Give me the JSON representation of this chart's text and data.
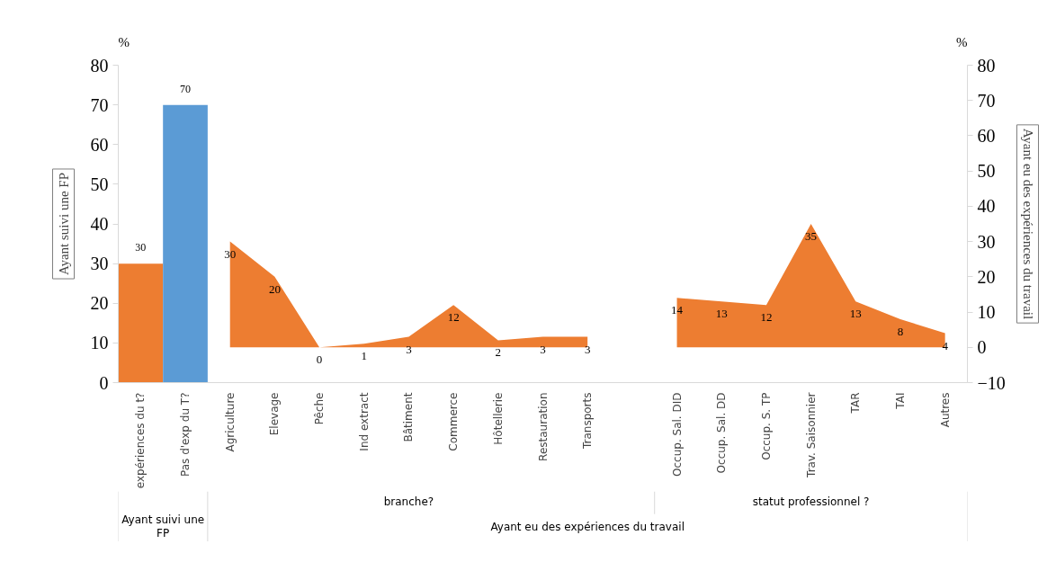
{
  "chart_data": {
    "type": "bar",
    "ylabel": "Ayant suivi une FP",
    "y2label": "Ayant eu des expériences du travail",
    "categories": [
      "expériences du t?",
      "Pas d'exp du T?",
      "Agriculture",
      "Elevage",
      "Pêche",
      "Ind extract",
      "Bâtiment",
      "Commerce",
      "Hôtellerie",
      "Restauration",
      "Transports",
      null,
      "Occup. Sal. DID",
      "Occup. Sal. DD",
      "Occup. S. TP",
      "Trav. Saisonnier",
      "TAR",
      "TAI",
      "Autres"
    ],
    "series": [
      {
        "colors": [
          "#ed7d31",
          "#5b9bd5",
          null,
          null,
          null,
          null,
          null,
          null,
          null,
          null,
          null,
          null,
          null,
          null,
          null,
          null,
          null,
          null,
          null
        ],
        "values": [
          30,
          70,
          null,
          null,
          null,
          null,
          null,
          null,
          null,
          null,
          null,
          null,
          null,
          null,
          null,
          null,
          null,
          null,
          null
        ]
      },
      {
        "type": "area",
        "axis": "y2",
        "color": "#ed7d31",
        "values": [
          null,
          null,
          30,
          20,
          0,
          1,
          3,
          12,
          2,
          3,
          3,
          null,
          null,
          null,
          null,
          null,
          null,
          null,
          null
        ]
      },
      {
        "type": "area",
        "axis": "y2",
        "color": "#ed7d31",
        "values": [
          null,
          null,
          null,
          null,
          null,
          null,
          null,
          null,
          null,
          null,
          null,
          null,
          14,
          13,
          12,
          35,
          13,
          8,
          4
        ]
      }
    ],
    "ylim": [
      0,
      80
    ],
    "yticks": [
      0,
      10,
      20,
      30,
      40,
      50,
      60,
      70,
      80
    ],
    "y2lim": [
      -10,
      80
    ],
    "y2ticks": [
      -10,
      0,
      10,
      20,
      30,
      40,
      50,
      60,
      70,
      80
    ],
    "data_labels": true,
    "grid": false,
    "annotations": [
      "%",
      "%",
      "Ayant suivi une FP",
      "branche?",
      "statut professionnel ?",
      "Ayant eu des expériences du travail"
    ]
  }
}
